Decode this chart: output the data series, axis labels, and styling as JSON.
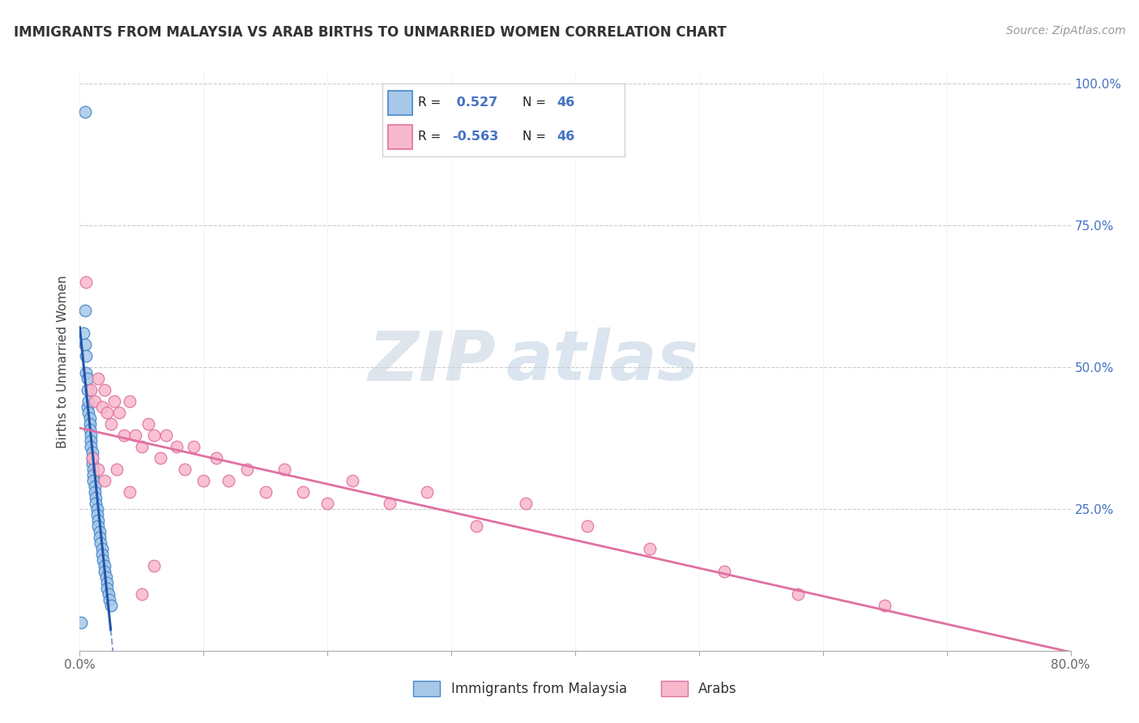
{
  "title": "IMMIGRANTS FROM MALAYSIA VS ARAB BIRTHS TO UNMARRIED WOMEN CORRELATION CHART",
  "source": "Source: ZipAtlas.com",
  "ylabel": "Births to Unmarried Women",
  "xlim": [
    0.0,
    0.8
  ],
  "ylim": [
    0.0,
    1.02
  ],
  "blue_color": "#a8c8e8",
  "blue_edge_color": "#4488cc",
  "blue_line_color": "#2255aa",
  "pink_color": "#f8b8cc",
  "pink_edge_color": "#e070a0",
  "pink_line_color": "#e070a0",
  "right_axis_color": "#4472c4",
  "grid_color": "#cccccc",
  "background_color": "#ffffff",
  "blue_series_x": [
    0.003,
    0.004,
    0.004,
    0.005,
    0.005,
    0.006,
    0.006,
    0.006,
    0.007,
    0.007,
    0.008,
    0.008,
    0.008,
    0.009,
    0.009,
    0.009,
    0.01,
    0.01,
    0.01,
    0.011,
    0.011,
    0.011,
    0.012,
    0.012,
    0.013,
    0.013,
    0.014,
    0.014,
    0.015,
    0.015,
    0.016,
    0.016,
    0.017,
    0.018,
    0.018,
    0.019,
    0.02,
    0.02,
    0.021,
    0.022,
    0.022,
    0.023,
    0.024,
    0.025,
    0.004,
    0.001
  ],
  "blue_series_y": [
    0.56,
    0.54,
    0.6,
    0.49,
    0.52,
    0.46,
    0.48,
    0.43,
    0.44,
    0.42,
    0.41,
    0.4,
    0.39,
    0.38,
    0.37,
    0.36,
    0.35,
    0.34,
    0.33,
    0.32,
    0.31,
    0.3,
    0.29,
    0.28,
    0.27,
    0.26,
    0.25,
    0.24,
    0.23,
    0.22,
    0.21,
    0.2,
    0.19,
    0.18,
    0.17,
    0.16,
    0.15,
    0.14,
    0.13,
    0.12,
    0.11,
    0.1,
    0.09,
    0.08,
    0.95,
    0.05
  ],
  "blue_outlier_x": [
    0.003
  ],
  "blue_outlier_y": [
    0.97
  ],
  "pink_series_x": [
    0.005,
    0.009,
    0.012,
    0.015,
    0.018,
    0.02,
    0.022,
    0.025,
    0.028,
    0.032,
    0.036,
    0.04,
    0.045,
    0.05,
    0.055,
    0.06,
    0.065,
    0.07,
    0.078,
    0.085,
    0.092,
    0.1,
    0.11,
    0.12,
    0.135,
    0.15,
    0.165,
    0.18,
    0.2,
    0.22,
    0.25,
    0.28,
    0.32,
    0.36,
    0.41,
    0.46,
    0.52,
    0.58,
    0.65,
    0.01,
    0.015,
    0.02,
    0.03,
    0.04,
    0.05,
    0.06
  ],
  "pink_series_y": [
    0.65,
    0.46,
    0.44,
    0.48,
    0.43,
    0.46,
    0.42,
    0.4,
    0.44,
    0.42,
    0.38,
    0.44,
    0.38,
    0.36,
    0.4,
    0.38,
    0.34,
    0.38,
    0.36,
    0.32,
    0.36,
    0.3,
    0.34,
    0.3,
    0.32,
    0.28,
    0.32,
    0.28,
    0.26,
    0.3,
    0.26,
    0.28,
    0.22,
    0.26,
    0.22,
    0.18,
    0.14,
    0.1,
    0.08,
    0.34,
    0.32,
    0.3,
    0.32,
    0.28,
    0.1,
    0.15
  ]
}
